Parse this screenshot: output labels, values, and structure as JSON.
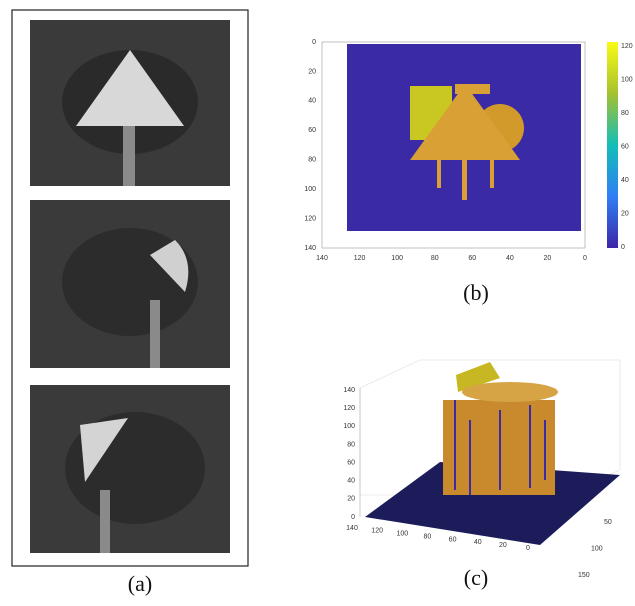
{
  "panels": {
    "a": {
      "label": "(a)"
    },
    "b": {
      "label": "(b)",
      "xticks": [
        140,
        120,
        100,
        80,
        60,
        40,
        20,
        0
      ],
      "yticks": [
        0,
        20,
        40,
        60,
        80,
        100,
        120,
        140
      ],
      "colorbar_ticks": [
        0,
        20,
        40,
        60,
        80,
        100,
        120
      ]
    },
    "c": {
      "label": "(c)",
      "zticks": [
        0,
        20,
        40,
        60,
        80,
        100,
        120,
        140
      ],
      "xticks": [
        140,
        120,
        100,
        80,
        60,
        40,
        20,
        0
      ],
      "yticks": [
        50,
        100,
        150
      ]
    }
  }
}
